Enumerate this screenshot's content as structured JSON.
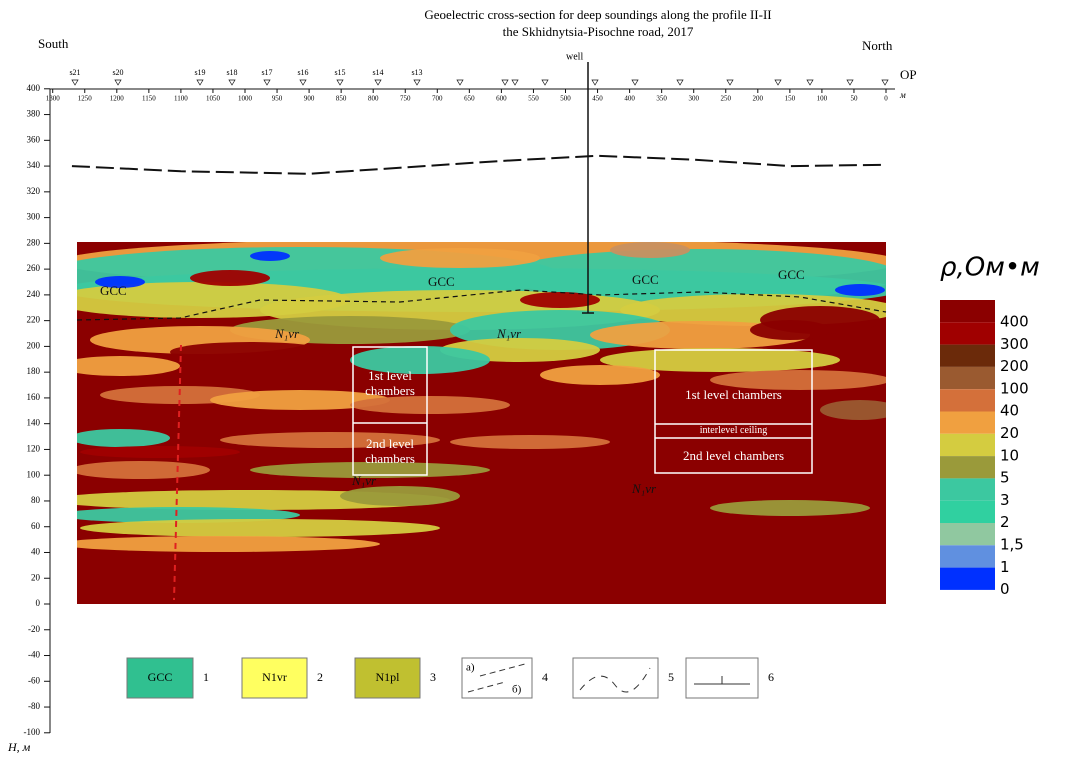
{
  "header": {
    "title": "Geoelectric cross-section for deep soundings along the profile II-II",
    "subtitle": "the Skhidnytsia-Pisochne road, 2017",
    "left": "South",
    "right": "North"
  },
  "axes": {
    "y_label": "H, м",
    "x_unit": "м",
    "profile_label": "OP",
    "y_ticks": [
      400,
      380,
      360,
      340,
      320,
      300,
      280,
      260,
      240,
      220,
      200,
      180,
      160,
      140,
      120,
      100,
      80,
      60,
      40,
      20,
      0,
      -20,
      -40,
      -60,
      -80,
      -100
    ],
    "x_ticks": [
      1300,
      1250,
      1200,
      1150,
      1100,
      1050,
      1000,
      950,
      900,
      850,
      800,
      750,
      700,
      650,
      600,
      550,
      500,
      450,
      400,
      350,
      300,
      250,
      200,
      150,
      100,
      50,
      0
    ]
  },
  "stations": [
    "s21",
    "s20",
    "s19",
    "s18",
    "s17",
    "s16",
    "s15",
    "s14",
    "s13"
  ],
  "well": "well",
  "section_labels": [
    "GCC",
    "GCC",
    "GCC",
    "GCC",
    "N₁vr",
    "N₁vr",
    "N₁vr",
    "N₁vr"
  ],
  "chambers": {
    "left": [
      "1st level chambers",
      "2nd level chambers"
    ],
    "right": [
      "1st level chambers",
      "interlevel ceiling",
      "2nd level chambers"
    ]
  },
  "scale": {
    "title": "ρ,Ом•м",
    "labels": [
      "400",
      "300",
      "200",
      "100",
      "40",
      "20",
      "10",
      "5",
      "3",
      "2",
      "1,5",
      "1",
      "0"
    ]
  },
  "legend": [
    {
      "label": "GCC",
      "number": "1"
    },
    {
      "label": "N1vr",
      "number": "2"
    },
    {
      "label": "N1pl",
      "number": "3"
    },
    {
      "label_a": "а)",
      "label_b": "б)",
      "number": "4"
    },
    {
      "number": "5"
    },
    {
      "number": "6"
    }
  ]
}
